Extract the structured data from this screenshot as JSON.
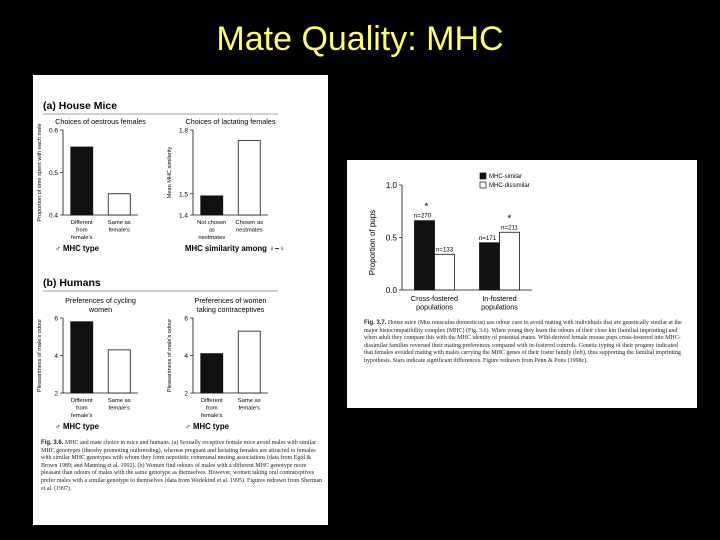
{
  "slide": {
    "title": "Mate Quality: MHC"
  },
  "left_figure": {
    "panel_a_label": "(a) House Mice",
    "panel_b_label": "(b) Humans",
    "caption_label": "Fig. 3.6.",
    "caption_text": "MHC and mate choice in mice and humans. (a) Sexually receptive female mice avoid males with similar MHC genotypes (thereby promoting outbreeding), whereas pregnant and lactating females are attracted to females with similar MHC genotypes with whom they form nepotistic communal nesting associations (data from Egid & Brown 1989; and Manning et al. 1992). (b) Women find odours of males with a different MHC genotype more pleasant than odours of males with the same genotype as themselves. However, women taking oral contraceptives prefer males with a similar genotype to themselves (data from Wedekind et al. 1995). Figures redrawn from Sherman et al. (1997)."
  },
  "right_figure": {
    "caption_label": "Fig. 3.7.",
    "caption_text": "House mice (Mus musculus domesticus) use odour cues to avoid mating with individuals that are genetically similar at the major histocompatibility complex (MHC) (Fig. 3.6). When young they learn the odours of their close kin (familial imprinting) and when adult they compare this with the MHC identity of potential mates. Wild-derived female mouse pups cross-fostered into MHC-dissimilar families reversed their mating preferences compared with in-fostered controls. Genetic typing of their progeny indicated that females avoided mating with males carrying the MHC genes of their foster family (left), thus supporting the familial imprinting hypothesis. Stars indicate significant differences. Figure redrawn from Penn & Potts (1998c)."
  },
  "chart_data": [
    {
      "id": "mice-oestrous",
      "type": "bar",
      "title": "Choices of oestrous females",
      "ylabel": "Proportion of time spent with each male",
      "ylim": [
        0.4,
        0.6
      ],
      "yticks": [
        "0.4",
        "0.5",
        "0.6"
      ],
      "categories": [
        "Different from female's",
        "Same as female's"
      ],
      "values": [
        0.56,
        0.45
      ],
      "group_label": "♂ MHC type"
    },
    {
      "id": "mice-lactating",
      "type": "bar",
      "title": "Choices of lactating females",
      "ylabel": "Mean MHC similarity",
      "ylim": [
        1.4,
        1.8
      ],
      "yticks": [
        "1.4",
        "1.5",
        "1.8"
      ],
      "categories": [
        "Not chosen as nestmates",
        "Chosen as nestmates"
      ],
      "values": [
        1.49,
        1.75
      ],
      "group_label": "MHC similarity among ♀–♀"
    },
    {
      "id": "humans-cycling",
      "type": "bar",
      "title": "Preferences of cycling women",
      "ylabel": "Pleasantness of male's odour",
      "ylim": [
        2,
        6
      ],
      "yticks": [
        "2",
        "4",
        "6"
      ],
      "categories": [
        "Different from female's",
        "Same as female's"
      ],
      "values": [
        5.8,
        4.3
      ],
      "group_label": "♂ MHC type"
    },
    {
      "id": "humans-contraceptives",
      "type": "bar",
      "title": "Preferences of women taking contraceptives",
      "ylabel": "Pleasantness of male's odour",
      "ylim": [
        2,
        6
      ],
      "yticks": [
        "2",
        "4",
        "6"
      ],
      "categories": [
        "Different from female's",
        "Same as female's"
      ],
      "values": [
        4.1,
        5.3
      ],
      "group_label": "♂ MHC type"
    },
    {
      "id": "mice-fostering",
      "type": "bar",
      "ylabel": "Proportion of pups",
      "ylim": [
        0,
        1.0
      ],
      "yticks": [
        "0.0",
        "0.5",
        "1.0"
      ],
      "categories": [
        "Cross-fostered populations",
        "In-fostered populations"
      ],
      "series": [
        {
          "name": "MHC-similar",
          "values": [
            0.66,
            0.45
          ],
          "n": [
            "n=270",
            "n=171"
          ],
          "color": "#111111"
        },
        {
          "name": "MHC-dissimilar",
          "values": [
            0.34,
            0.55
          ],
          "n": [
            "n=133",
            "n=211"
          ],
          "color": "#ffffff"
        }
      ],
      "significance": [
        "*",
        "*"
      ],
      "legend_position": "top-right"
    }
  ]
}
